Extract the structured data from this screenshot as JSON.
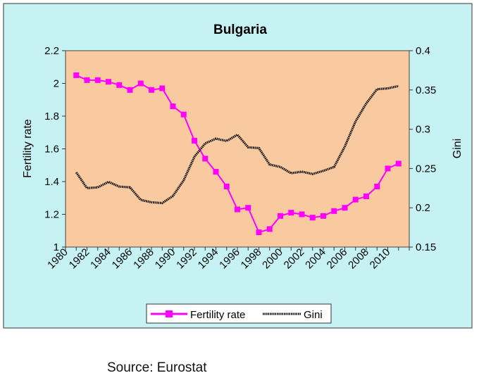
{
  "chart_data": {
    "type": "line",
    "title": "Bulgaria",
    "ylabel": "Fertility rate",
    "y2label": "Gini",
    "ylim": [
      1,
      2.2
    ],
    "y2lim": [
      0.15,
      0.4
    ],
    "yticks": [
      "1",
      "1.2",
      "1.4",
      "1.6",
      "1.8",
      "2",
      "2.2"
    ],
    "y2ticks": [
      "0.15",
      "0.2",
      "0.25",
      "0.3",
      "0.35",
      "0.4"
    ],
    "xticks": [
      "1980",
      "1982",
      "1984",
      "1986",
      "1988",
      "1990",
      "1992",
      "1994",
      "1996",
      "1998",
      "2000",
      "2002",
      "2004",
      "2006",
      "2008",
      "2010"
    ],
    "x": [
      1981,
      1982,
      1983,
      1984,
      1985,
      1986,
      1987,
      1988,
      1989,
      1990,
      1991,
      1992,
      1993,
      1994,
      1995,
      1996,
      1997,
      1998,
      1999,
      2000,
      2001,
      2002,
      2003,
      2004,
      2005,
      2006,
      2007,
      2008,
      2009,
      2010,
      2011
    ],
    "series": [
      {
        "name": "Fertility rate",
        "axis": "left",
        "color": "#ff00ff",
        "marker": "square",
        "values": [
          2.05,
          2.02,
          2.02,
          2.01,
          1.99,
          1.96,
          2.0,
          1.96,
          1.97,
          1.86,
          1.81,
          1.65,
          1.54,
          1.46,
          1.37,
          1.23,
          1.24,
          1.09,
          1.11,
          1.19,
          1.21,
          1.2,
          1.18,
          1.19,
          1.22,
          1.24,
          1.29,
          1.31,
          1.37,
          1.48,
          1.51
        ]
      },
      {
        "name": "Gini",
        "axis": "right",
        "color": "#000000",
        "marker": "line",
        "values": [
          0.245,
          0.225,
          0.226,
          0.233,
          0.227,
          0.226,
          0.21,
          0.207,
          0.206,
          0.215,
          0.235,
          0.265,
          0.282,
          0.288,
          0.285,
          0.293,
          0.277,
          0.276,
          0.255,
          0.252,
          0.244,
          0.246,
          0.243,
          0.247,
          0.252,
          0.278,
          0.31,
          0.333,
          0.351,
          0.352,
          0.355
        ]
      }
    ],
    "legend": [
      "Fertility rate",
      "Gini"
    ]
  },
  "source": "Source: Eurostat",
  "colors": {
    "outer_background": "#c6f2f4",
    "plot_background": "#f9caa0",
    "fertility": "#ff00ff",
    "gini": "#000000"
  }
}
